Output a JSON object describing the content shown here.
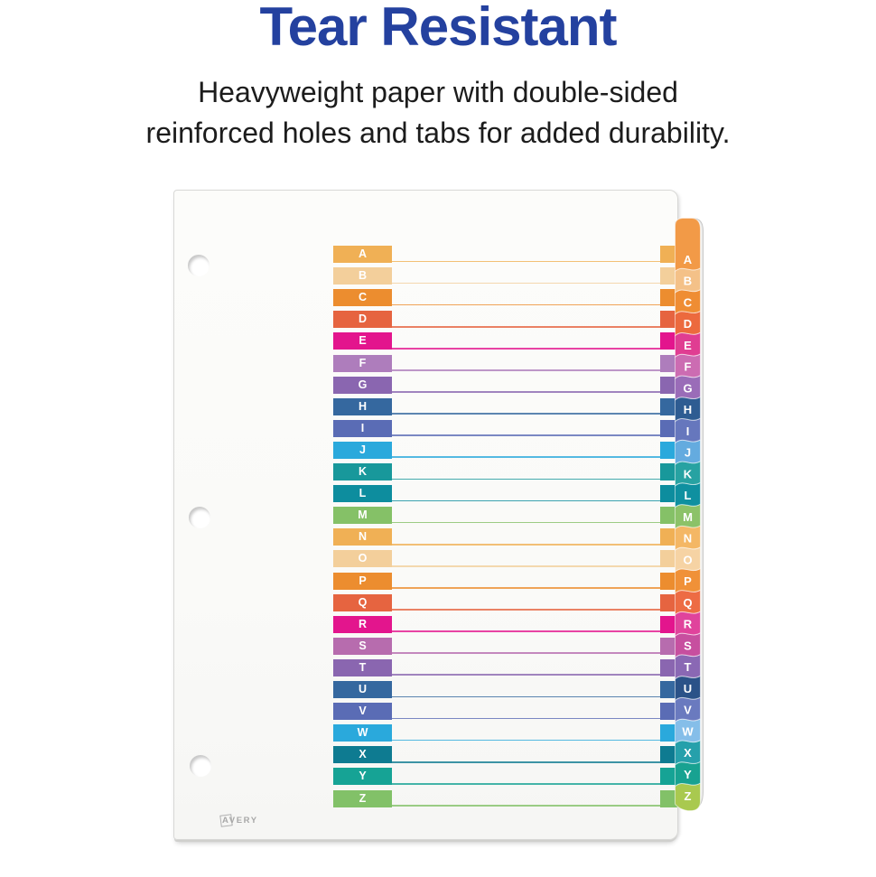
{
  "header": {
    "title": "Tear Resistant",
    "title_color": "#24419f",
    "subtitle_line1": "Heavyweight paper with double-sided",
    "subtitle_line2": "reinforced holes and tabs for added durability."
  },
  "divider": {
    "brand": "AVERY",
    "index_rows": [
      {
        "letter": "A",
        "color": "#f0b055"
      },
      {
        "letter": "B",
        "color": "#f3cf9b"
      },
      {
        "letter": "C",
        "color": "#ec8d2f"
      },
      {
        "letter": "D",
        "color": "#e66440"
      },
      {
        "letter": "E",
        "color": "#e3158d"
      },
      {
        "letter": "F",
        "color": "#ae7dbc"
      },
      {
        "letter": "G",
        "color": "#8a66b0"
      },
      {
        "letter": "H",
        "color": "#35689f"
      },
      {
        "letter": "I",
        "color": "#5a6cb5"
      },
      {
        "letter": "J",
        "color": "#2aa9dc"
      },
      {
        "letter": "K",
        "color": "#18989b"
      },
      {
        "letter": "L",
        "color": "#0d8d9e"
      },
      {
        "letter": "M",
        "color": "#85c167"
      },
      {
        "letter": "N",
        "color": "#f0b055"
      },
      {
        "letter": "O",
        "color": "#f3cf9b"
      },
      {
        "letter": "P",
        "color": "#ec8d2f"
      },
      {
        "letter": "Q",
        "color": "#e66440"
      },
      {
        "letter": "R",
        "color": "#e3158d"
      },
      {
        "letter": "S",
        "color": "#b76cae"
      },
      {
        "letter": "T",
        "color": "#8a66b0"
      },
      {
        "letter": "U",
        "color": "#35689f"
      },
      {
        "letter": "V",
        "color": "#5a6cb5"
      },
      {
        "letter": "W",
        "color": "#2aa9dc"
      },
      {
        "letter": "X",
        "color": "#0e7b91"
      },
      {
        "letter": "Y",
        "color": "#16a395"
      },
      {
        "letter": "Z",
        "color": "#82c168"
      }
    ],
    "edge_tabs": [
      {
        "letter": "A",
        "color": "#f29a47"
      },
      {
        "letter": "B",
        "color": "#f4c188"
      },
      {
        "letter": "C",
        "color": "#ef8d33"
      },
      {
        "letter": "D",
        "color": "#ec6a3e"
      },
      {
        "letter": "E",
        "color": "#e03d92"
      },
      {
        "letter": "F",
        "color": "#cc6cb2"
      },
      {
        "letter": "G",
        "color": "#9a6cb8"
      },
      {
        "letter": "H",
        "color": "#2e5c92"
      },
      {
        "letter": "I",
        "color": "#6677bd"
      },
      {
        "letter": "J",
        "color": "#64abdf"
      },
      {
        "letter": "K",
        "color": "#27a2a2"
      },
      {
        "letter": "L",
        "color": "#0f90a0"
      },
      {
        "letter": "M",
        "color": "#8cc268"
      },
      {
        "letter": "N",
        "color": "#f4b765"
      },
      {
        "letter": "O",
        "color": "#f6d3a4"
      },
      {
        "letter": "P",
        "color": "#f09138"
      },
      {
        "letter": "Q",
        "color": "#ed6c44"
      },
      {
        "letter": "R",
        "color": "#e0439c"
      },
      {
        "letter": "S",
        "color": "#c74f9f"
      },
      {
        "letter": "T",
        "color": "#8a68b4"
      },
      {
        "letter": "U",
        "color": "#2b5288"
      },
      {
        "letter": "V",
        "color": "#6a7abf"
      },
      {
        "letter": "W",
        "color": "#85bee9"
      },
      {
        "letter": "X",
        "color": "#26a0ab"
      },
      {
        "letter": "Y",
        "color": "#18a291"
      },
      {
        "letter": "Z",
        "color": "#a9c94f"
      }
    ]
  }
}
